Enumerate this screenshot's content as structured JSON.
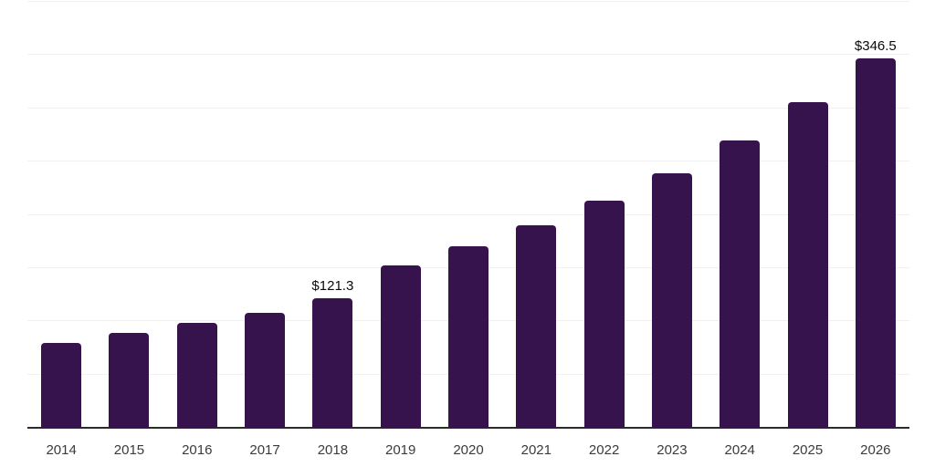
{
  "chart_data": {
    "type": "bar",
    "title": "",
    "xlabel": "",
    "ylabel": "",
    "categories": [
      "2014",
      "2015",
      "2016",
      "2017",
      "2018",
      "2019",
      "2020",
      "2021",
      "2022",
      "2023",
      "2024",
      "2025",
      "2026"
    ],
    "values": [
      79.3,
      88.7,
      98.1,
      108.3,
      121.3,
      152.7,
      170.6,
      190.2,
      213.3,
      239.3,
      269.6,
      305.4,
      346.5
    ],
    "labeled_points": [
      {
        "category": "2018",
        "label": "$121.3"
      },
      {
        "category": "2026",
        "label": "$346.5"
      }
    ],
    "ylim": [
      0,
      400
    ],
    "gridline_step": 50,
    "grid": true,
    "y_axis_labels_visible": false,
    "legend_position": "none",
    "colors": {
      "bar": "#36134D",
      "axis_line": "#2b2b2b",
      "gridline": "#f1f1f4",
      "tick_label": "#3b3b3b",
      "data_label": "#0a0a0a",
      "background": "#ffffff"
    }
  }
}
